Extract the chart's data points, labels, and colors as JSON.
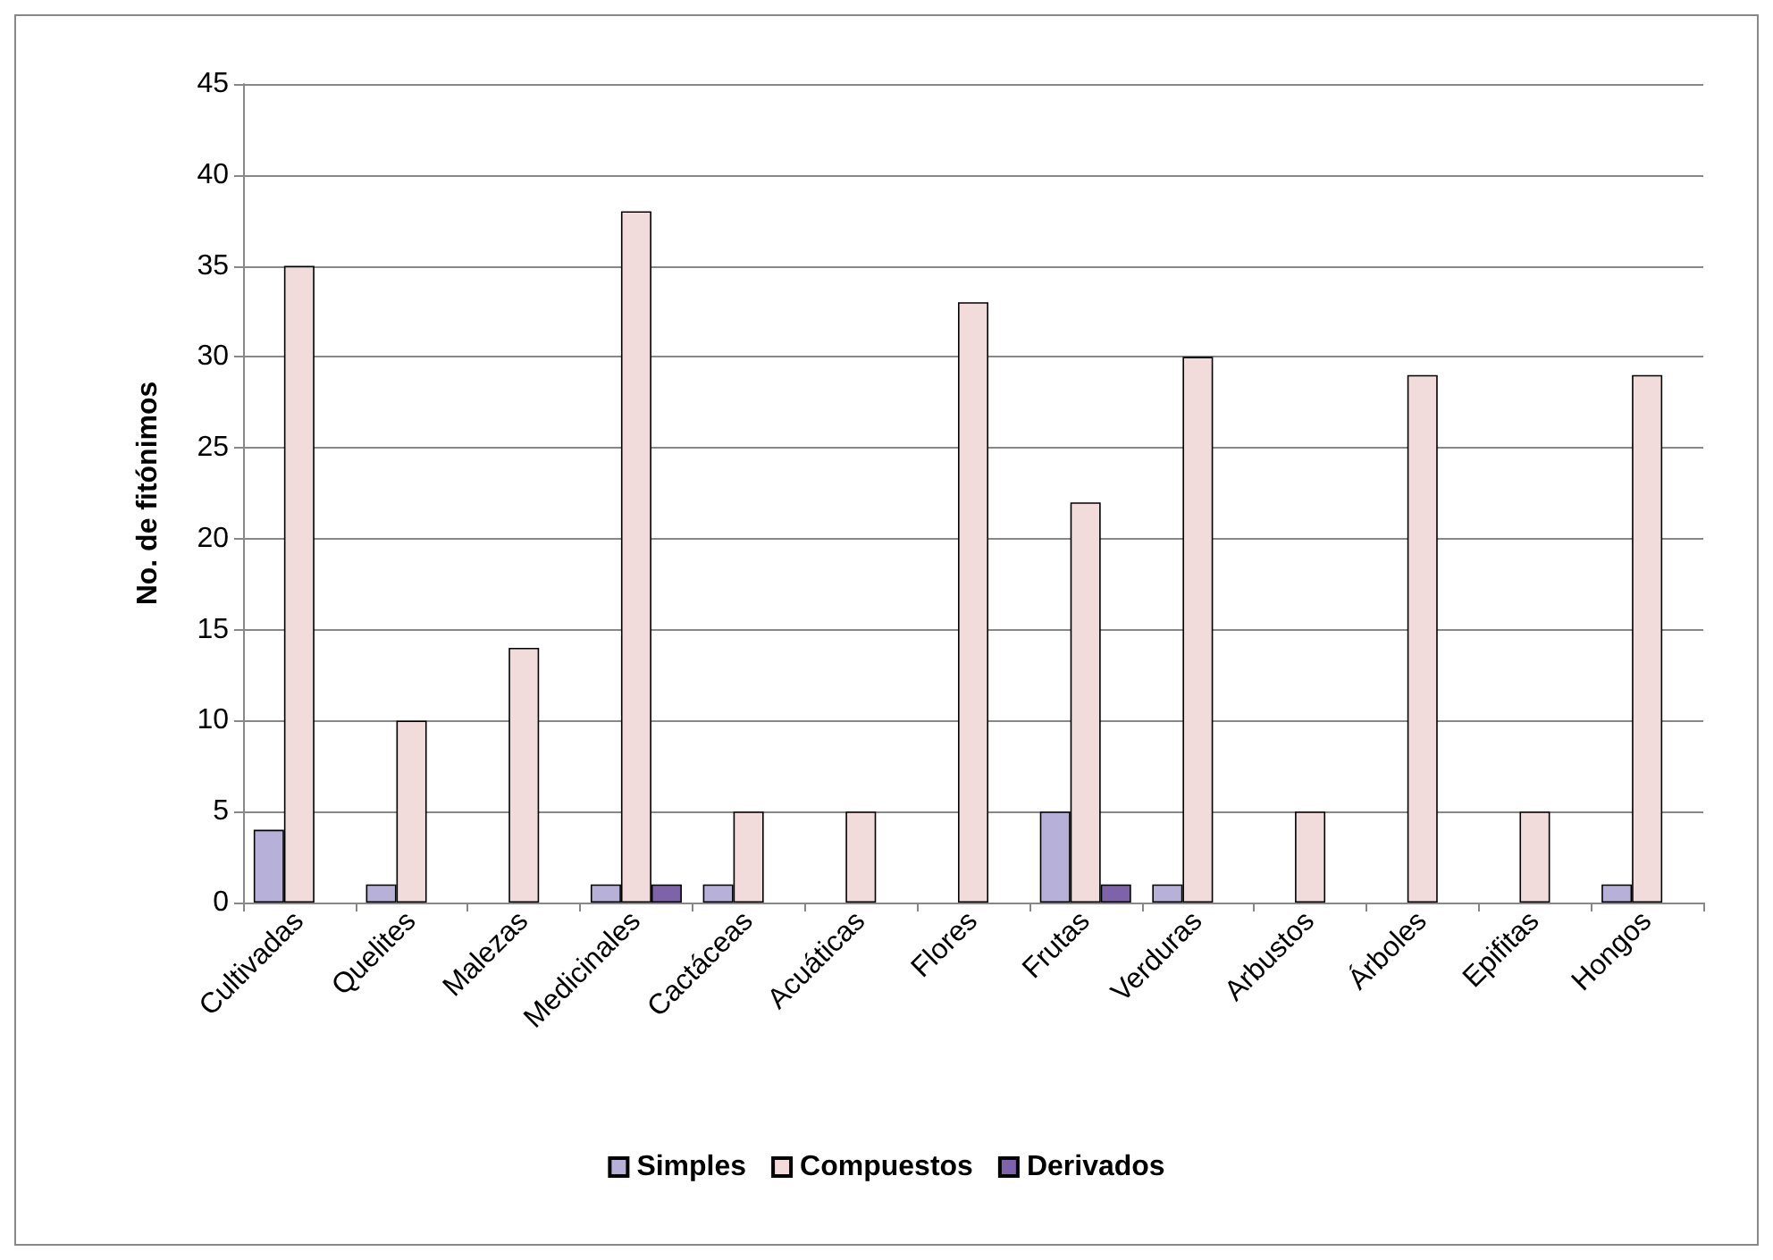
{
  "chart_data": {
    "type": "bar",
    "ylabel": "No. de fitónimos",
    "categories": [
      "Cultivadas",
      "Quelites",
      "Malezas",
      "Medicinales",
      "Cactáceas",
      "Acuáticas",
      "Flores",
      "Frutas",
      "Verduras",
      "Arbustos",
      "Árboles",
      "Epifitas",
      "Hongos"
    ],
    "series": [
      {
        "name": "Simples",
        "color": "#b7b0d8",
        "values": [
          4,
          1,
          null,
          1,
          1,
          null,
          null,
          5,
          1,
          null,
          null,
          null,
          1
        ]
      },
      {
        "name": "Compuestos",
        "color": "#f2dcdb",
        "values": [
          35,
          10,
          14,
          38,
          5,
          5,
          33,
          22,
          30,
          5,
          29,
          5,
          29
        ]
      },
      {
        "name": "Derivados",
        "color": "#7f63aa",
        "values": [
          null,
          null,
          null,
          1,
          null,
          null,
          null,
          1,
          null,
          null,
          null,
          null,
          null
        ]
      }
    ],
    "ylim": [
      0,
      45
    ],
    "yticks": [
      0,
      5,
      10,
      15,
      20,
      25,
      30,
      35,
      40,
      45
    ],
    "grid": "y",
    "legend": "bottom"
  }
}
